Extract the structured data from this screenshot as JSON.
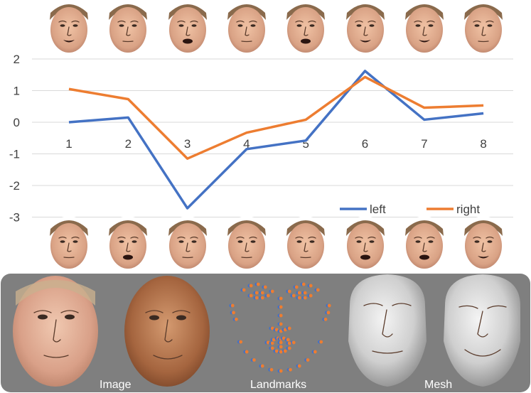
{
  "chart_data": {
    "type": "line",
    "categories": [
      "1",
      "2",
      "3",
      "4",
      "5",
      "6",
      "7",
      "8"
    ],
    "series": [
      {
        "name": "left",
        "color": "#4472c4",
        "values": [
          0.0,
          0.15,
          -2.72,
          -0.85,
          -0.58,
          1.62,
          0.08,
          0.28
        ]
      },
      {
        "name": "right",
        "color": "#ed7d31",
        "values": [
          1.05,
          0.73,
          -1.15,
          -0.33,
          0.08,
          1.43,
          0.46,
          0.53
        ]
      }
    ],
    "y_ticks": [
      "2",
      "1",
      "0",
      "-1",
      "-2",
      "-3"
    ],
    "ylim": [
      -3,
      2
    ],
    "grid": true,
    "legend": "bottom-right"
  },
  "top_faces": [
    {
      "mouth": "smile"
    },
    {
      "mouth": "neutral"
    },
    {
      "mouth": "open"
    },
    {
      "mouth": "neutral"
    },
    {
      "mouth": "open"
    },
    {
      "mouth": "smile"
    },
    {
      "mouth": "smile"
    },
    {
      "mouth": "neutral"
    }
  ],
  "bottom_faces": [
    {
      "mouth": "neutral"
    },
    {
      "mouth": "open"
    },
    {
      "mouth": "neutral"
    },
    {
      "mouth": "neutral"
    },
    {
      "mouth": "neutral"
    },
    {
      "mouth": "open"
    },
    {
      "mouth": "open"
    },
    {
      "mouth": "smile"
    }
  ],
  "panel": {
    "background": "#7f7f7f",
    "labels": {
      "image": "Image",
      "landmarks": "Landmarks",
      "mesh": "Mesh"
    },
    "landmark_colors": {
      "primary": "#ed7d31",
      "secondary": "#4472c4"
    }
  }
}
